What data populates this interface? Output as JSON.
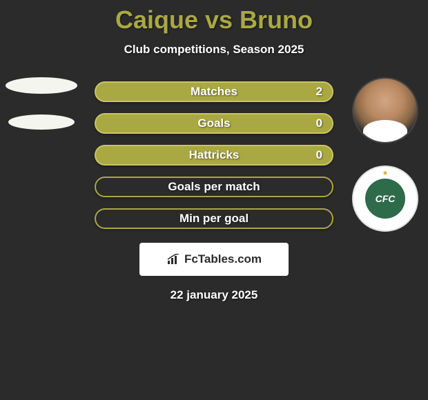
{
  "title": "Caique vs Bruno",
  "subtitle": "Club competitions, Season 2025",
  "date": "22 january 2025",
  "watermark": {
    "text": "FcTables.com"
  },
  "logo_text": "CFC",
  "colors": {
    "title_color": "#aaa842",
    "text_color": "#ffffff",
    "background": "#2b2b2b",
    "watermark_bg": "#ffffff",
    "watermark_text": "#2b2b2b",
    "bar_filled_bg": "#aaa842",
    "bar_filled_border": "#c9c760",
    "bar_empty_bg": "#2b2b2b",
    "bar_empty_border": "#aaa842"
  },
  "bars": [
    {
      "label": "Matches",
      "value": "2",
      "filled": true
    },
    {
      "label": "Goals",
      "value": "0",
      "filled": true
    },
    {
      "label": "Hattricks",
      "value": "0",
      "filled": true
    },
    {
      "label": "Goals per match",
      "value": "",
      "filled": false
    },
    {
      "label": "Min per goal",
      "value": "",
      "filled": false
    }
  ]
}
